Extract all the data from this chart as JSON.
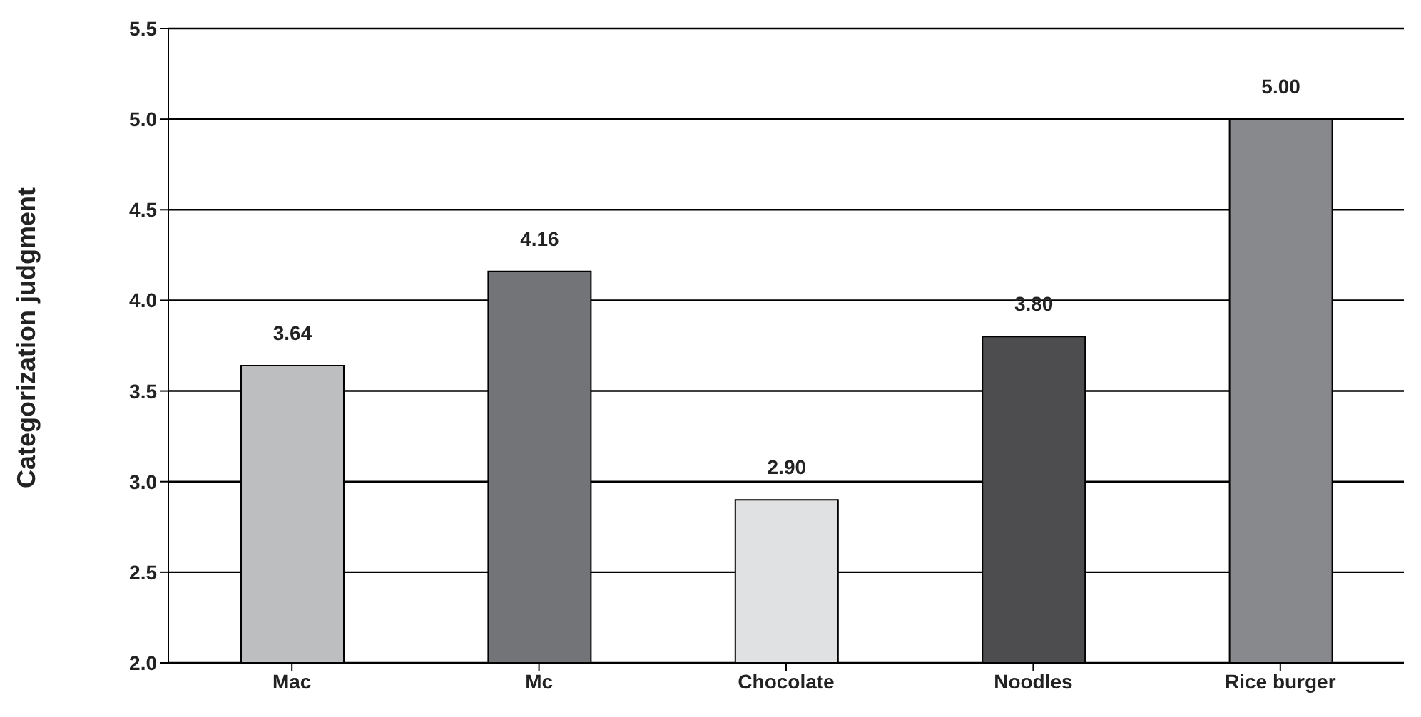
{
  "chart_data": {
    "type": "bar",
    "ylabel": "Categorization judgment",
    "categories": [
      "Mac",
      "Mc",
      "Chocolate",
      "Noodles",
      "Rice burger"
    ],
    "values": [
      3.64,
      4.16,
      2.9,
      3.8,
      5.0
    ],
    "colors": [
      "#bdbec0",
      "#737477",
      "#e0e1e2",
      "#4d4d4f",
      "#88898c"
    ],
    "value_labels": [
      "3.64",
      "4.16",
      "2.90",
      "3.80",
      "5.00"
    ],
    "ylim": [
      2.0,
      5.5
    ],
    "yticks": [
      {
        "value": 2,
        "label": "2.0"
      },
      {
        "value": 2.5,
        "label": "2.5"
      },
      {
        "value": 3,
        "label": "3.0"
      },
      {
        "value": 3.5,
        "label": "3.5"
      },
      {
        "value": 4,
        "label": "4.0"
      },
      {
        "value": 4.5,
        "label": "4.5"
      },
      {
        "value": 5,
        "label": "5.0"
      },
      {
        "value": 5.5,
        "label": "5.5"
      }
    ],
    "grid": "y"
  }
}
